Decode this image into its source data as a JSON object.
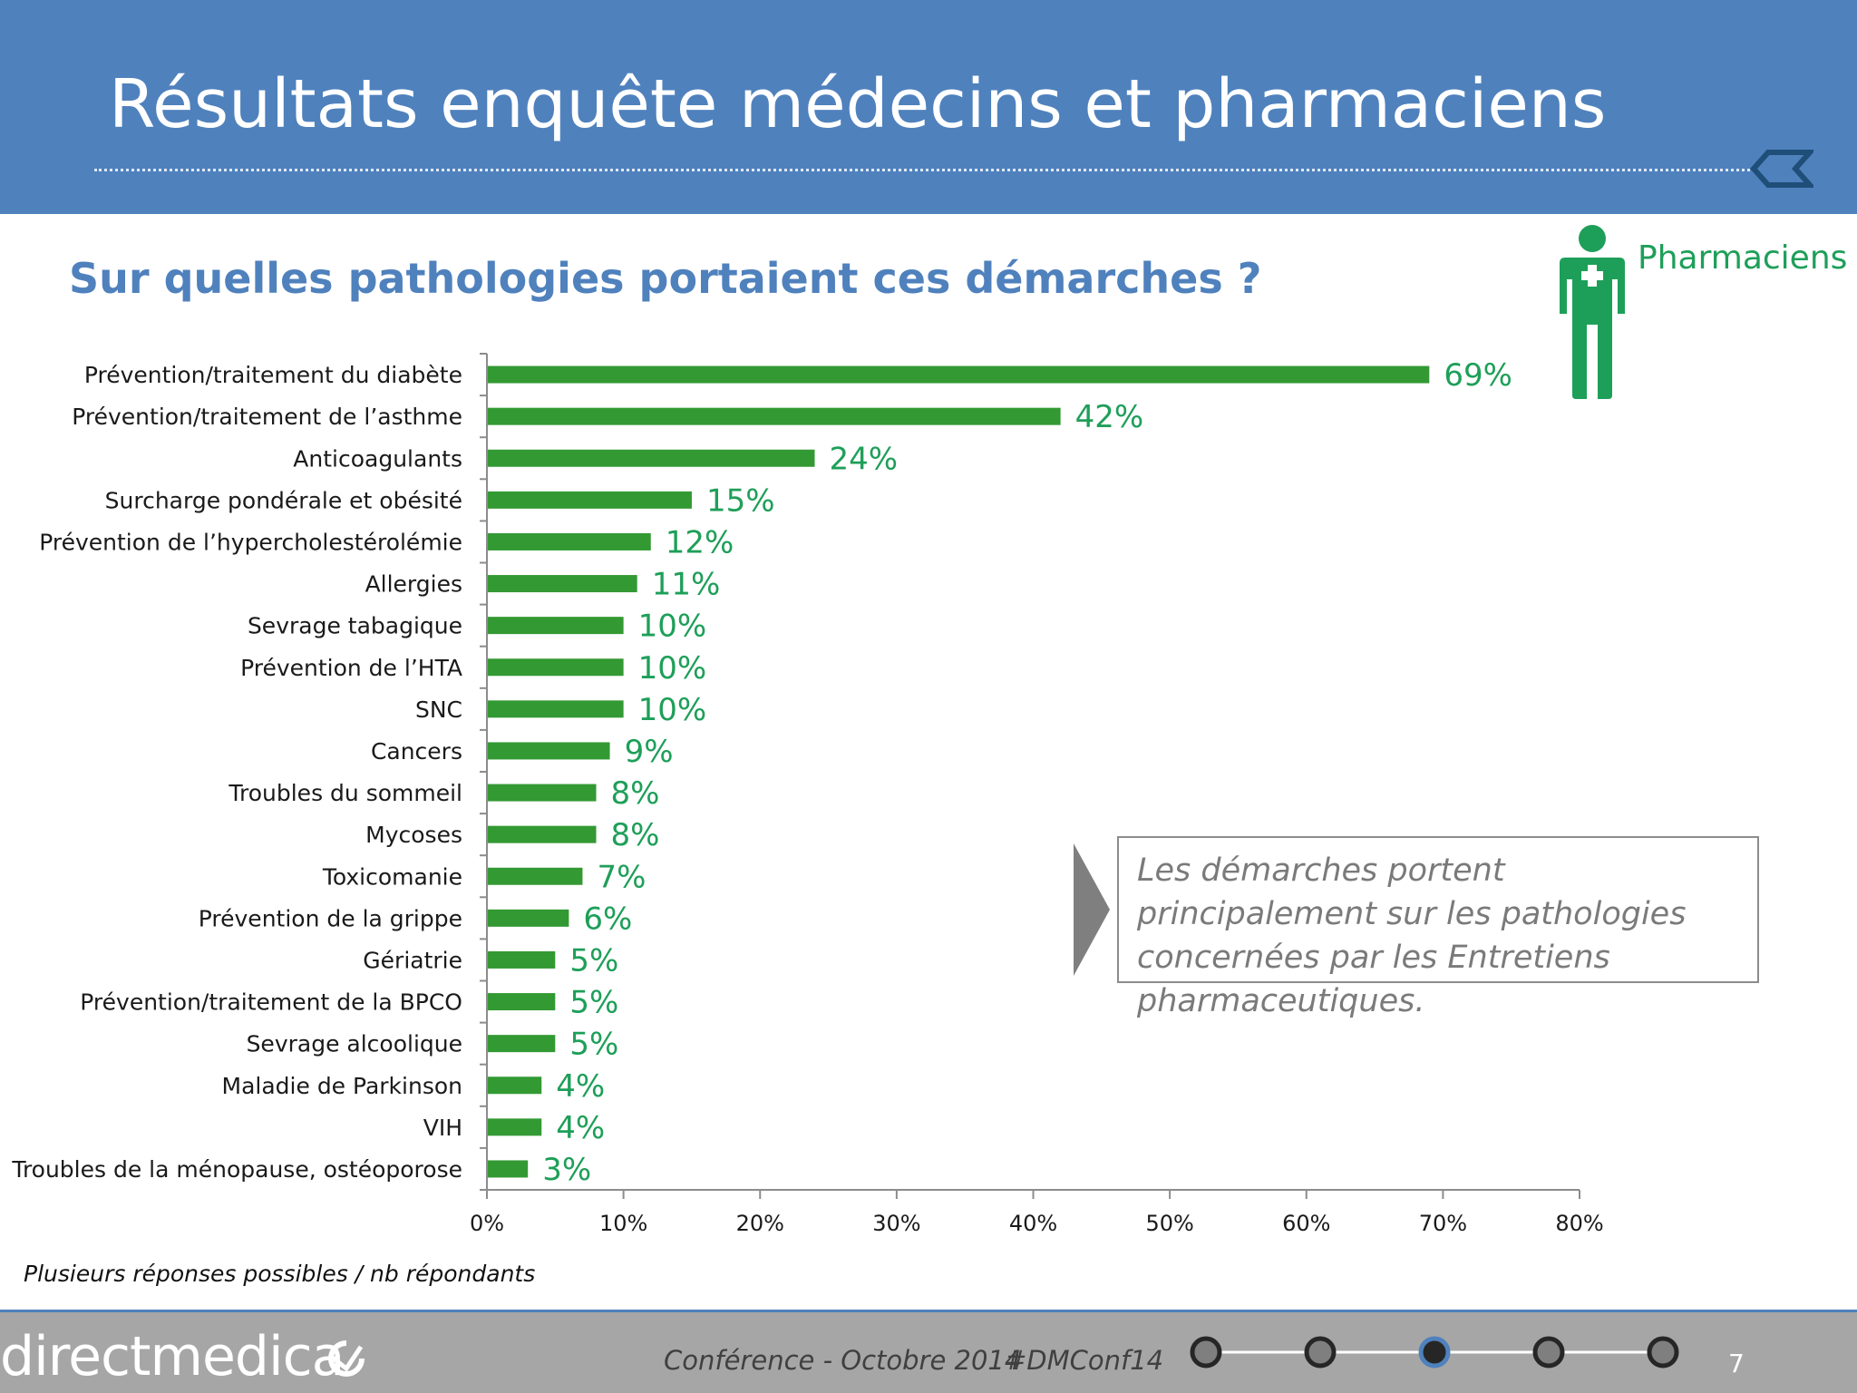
{
  "slide": {
    "title": "Résultats enquête médecins et pharmaciens",
    "subtitle": "Sur quelles pathologies portaient ces démarches ?",
    "audience_label": "Pharmaciens",
    "callout": "Les démarches portent principalement sur les pathologies concernées par les Entretiens pharmaceutiques.",
    "footnote": "Plusieurs réponses possibles / nb répondants"
  },
  "footer": {
    "logo": "directmedica",
    "conference": "Conférence - Octobre 2014",
    "hashtag": "#DMConf14",
    "page_number": "7",
    "progress_total": 5,
    "progress_current": 3
  },
  "colors": {
    "header": "#4f81bd",
    "bar": "#339933",
    "accent_green": "#1e9f59",
    "footer": "#a6a6a6"
  },
  "icons": [
    "pharmacist-figure-icon",
    "chevron-left-icon",
    "callout-arrow-icon",
    "directmedica-logo-icon"
  ],
  "chart_data": {
    "type": "bar",
    "orientation": "horizontal",
    "title": "",
    "xlabel": "",
    "ylabel": "",
    "xlim": [
      0,
      80
    ],
    "ticks": [
      "0%",
      "10%",
      "20%",
      "30%",
      "40%",
      "50%",
      "60%",
      "70%",
      "80%"
    ],
    "tick_values": [
      0,
      10,
      20,
      30,
      40,
      50,
      60,
      70,
      80
    ],
    "grid": false,
    "categories": [
      "Prévention/traitement du diabète",
      "Prévention/traitement de l’asthme",
      "Anticoagulants",
      "Surcharge pondérale et obésité",
      "Prévention de l’hypercholestérolémie",
      "Allergies",
      "Sevrage tabagique",
      "Prévention de l’HTA",
      "SNC",
      "Cancers",
      "Troubles du sommeil",
      "Mycoses",
      "Toxicomanie",
      "Prévention de la grippe",
      "Gériatrie",
      "Prévention/traitement de la BPCO",
      "Sevrage alcoolique",
      "Maladie de Parkinson",
      "VIH",
      "Troubles de la ménopause, ostéoporose"
    ],
    "values": [
      69,
      42,
      24,
      15,
      12,
      11,
      10,
      10,
      10,
      9,
      8,
      8,
      7,
      6,
      5,
      5,
      5,
      4,
      4,
      3
    ],
    "labels": [
      "69%",
      "42%",
      "24%",
      "15%",
      "12%",
      "11%",
      "10%",
      "10%",
      "10%",
      "9%",
      "8%",
      "8%",
      "7%",
      "6%",
      "5%",
      "5%",
      "5%",
      "4%",
      "4%",
      "3%"
    ]
  }
}
